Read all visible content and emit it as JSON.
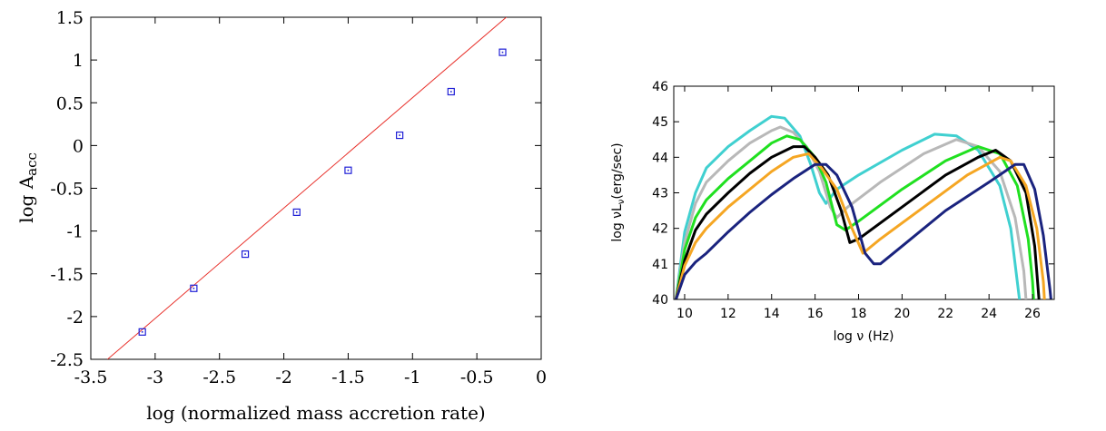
{
  "chart_data": [
    {
      "type": "scatter",
      "title": "",
      "xlabel": "log (normalized mass accretion rate)",
      "ylabel_main": "log A",
      "ylabel_sub": "acc",
      "xlim": [
        -3.5,
        0
      ],
      "ylim": [
        -2.5,
        1.5
      ],
      "xticks": [
        -3.5,
        -3,
        -2.5,
        -2,
        -1.5,
        -1,
        -0.5,
        0
      ],
      "xtick_labels": [
        "-3.5",
        "-3",
        "-2.5",
        "-2",
        "-1.5",
        "-1",
        "-0.5",
        "0"
      ],
      "yticks": [
        -2.5,
        -2,
        -1.5,
        -1,
        -0.5,
        0,
        0.5,
        1,
        1.5
      ],
      "ytick_labels": [
        "-2.5",
        "-2",
        "-1.5",
        "-1",
        "-0.5",
        "0",
        "0.5",
        "1",
        "1.5"
      ],
      "grid": false,
      "colors": {
        "points": "#1f1fd6",
        "fit": "#e8302a"
      },
      "points": [
        {
          "x": -3.1,
          "y": -2.18
        },
        {
          "x": -2.7,
          "y": -1.67
        },
        {
          "x": -2.3,
          "y": -1.27
        },
        {
          "x": -1.9,
          "y": -0.78
        },
        {
          "x": -1.5,
          "y": -0.29
        },
        {
          "x": -1.1,
          "y": 0.12
        },
        {
          "x": -0.7,
          "y": 0.63
        },
        {
          "x": -0.3,
          "y": 1.09
        }
      ],
      "fit_line": [
        {
          "x": -3.37,
          "y": -2.5
        },
        {
          "x": 0.0,
          "y": 1.85
        }
      ]
    },
    {
      "type": "line",
      "title": "",
      "xlabel": "log ν (Hz)",
      "ylabel_pre": "log νL",
      "ylabel_sub": "ν",
      "ylabel_post": "(erg/sec)",
      "xlim": [
        9.5,
        27
      ],
      "ylim": [
        40,
        46
      ],
      "xticks": [
        10,
        12,
        14,
        16,
        18,
        20,
        22,
        24,
        26
      ],
      "xtick_labels": [
        "10",
        "12",
        "14",
        "16",
        "18",
        "20",
        "22",
        "24",
        "26"
      ],
      "yticks": [
        40,
        41,
        42,
        43,
        44,
        45,
        46
      ],
      "ytick_labels": [
        "40",
        "41",
        "42",
        "43",
        "44",
        "45",
        "46"
      ],
      "grid": false,
      "series": [
        {
          "color": "#40d0d0",
          "points": [
            [
              9.6,
              40
            ],
            [
              10.0,
              41.9
            ],
            [
              10.5,
              43.0
            ],
            [
              11.0,
              43.7
            ],
            [
              12.0,
              44.3
            ],
            [
              13.0,
              44.75
            ],
            [
              14.0,
              45.15
            ],
            [
              14.6,
              45.1
            ],
            [
              15.3,
              44.6
            ],
            [
              15.8,
              43.8
            ],
            [
              16.2,
              43.0
            ],
            [
              16.5,
              42.7
            ],
            [
              17.0,
              43.1
            ],
            [
              18.0,
              43.5
            ],
            [
              20.0,
              44.2
            ],
            [
              21.5,
              44.65
            ],
            [
              22.5,
              44.6
            ],
            [
              23.5,
              44.2
            ],
            [
              24.5,
              43.2
            ],
            [
              25.0,
              42.0
            ],
            [
              25.3,
              40.5
            ],
            [
              25.4,
              40
            ]
          ]
        },
        {
          "color": "#b8b8b8",
          "points": [
            [
              9.6,
              40
            ],
            [
              10.0,
              41.6
            ],
            [
              10.5,
              42.7
            ],
            [
              11.0,
              43.3
            ],
            [
              12.0,
              43.9
            ],
            [
              13.0,
              44.4
            ],
            [
              14.0,
              44.75
            ],
            [
              14.4,
              44.85
            ],
            [
              15.0,
              44.7
            ],
            [
              15.6,
              44.3
            ],
            [
              16.2,
              43.6
            ],
            [
              16.7,
              42.6
            ],
            [
              17.0,
              42.3
            ],
            [
              17.5,
              42.6
            ],
            [
              19.0,
              43.3
            ],
            [
              21.0,
              44.1
            ],
            [
              22.5,
              44.5
            ],
            [
              23.5,
              44.3
            ],
            [
              24.5,
              43.6
            ],
            [
              25.2,
              42.3
            ],
            [
              25.6,
              40.8
            ],
            [
              25.7,
              40
            ]
          ]
        },
        {
          "color": "#20e020",
          "points": [
            [
              9.6,
              40
            ],
            [
              10.0,
              41.4
            ],
            [
              10.5,
              42.3
            ],
            [
              11.0,
              42.8
            ],
            [
              12.0,
              43.4
            ],
            [
              13.0,
              43.9
            ],
            [
              14.0,
              44.4
            ],
            [
              14.7,
              44.6
            ],
            [
              15.3,
              44.5
            ],
            [
              16.0,
              44.0
            ],
            [
              16.5,
              43.3
            ],
            [
              17.0,
              42.1
            ],
            [
              17.4,
              41.95
            ],
            [
              18.0,
              42.2
            ],
            [
              20.0,
              43.1
            ],
            [
              22.0,
              43.9
            ],
            [
              23.5,
              44.3
            ],
            [
              24.5,
              44.1
            ],
            [
              25.3,
              43.2
            ],
            [
              25.8,
              41.7
            ],
            [
              26.0,
              40.5
            ],
            [
              26.05,
              40
            ]
          ]
        },
        {
          "color": "#000000",
          "points": [
            [
              9.6,
              40
            ],
            [
              10.0,
              41.1
            ],
            [
              10.5,
              41.95
            ],
            [
              11.0,
              42.4
            ],
            [
              12.0,
              43.0
            ],
            [
              13.0,
              43.55
            ],
            [
              14.0,
              44.0
            ],
            [
              15.0,
              44.3
            ],
            [
              15.5,
              44.3
            ],
            [
              16.0,
              44.0
            ],
            [
              16.6,
              43.5
            ],
            [
              17.2,
              42.5
            ],
            [
              17.6,
              41.6
            ],
            [
              18.0,
              41.7
            ],
            [
              20.0,
              42.6
            ],
            [
              22.0,
              43.5
            ],
            [
              23.5,
              44.0
            ],
            [
              24.3,
              44.2
            ],
            [
              25.0,
              43.9
            ],
            [
              25.7,
              43.0
            ],
            [
              26.1,
              41.5
            ],
            [
              26.3,
              40
            ]
          ]
        },
        {
          "color": "#f5a623",
          "points": [
            [
              9.6,
              40
            ],
            [
              10.0,
              40.95
            ],
            [
              10.5,
              41.6
            ],
            [
              11.0,
              42.0
            ],
            [
              12.0,
              42.6
            ],
            [
              13.0,
              43.1
            ],
            [
              14.0,
              43.6
            ],
            [
              15.0,
              44.0
            ],
            [
              15.7,
              44.1
            ],
            [
              16.3,
              43.7
            ],
            [
              17.0,
              43.1
            ],
            [
              17.7,
              42.0
            ],
            [
              18.2,
              41.3
            ],
            [
              19.0,
              41.7
            ],
            [
              21.0,
              42.6
            ],
            [
              23.0,
              43.5
            ],
            [
              24.5,
              44.0
            ],
            [
              25.0,
              43.9
            ],
            [
              25.7,
              43.2
            ],
            [
              26.2,
              42.0
            ],
            [
              26.5,
              40.5
            ],
            [
              26.55,
              40
            ]
          ]
        },
        {
          "color": "#1a237e",
          "points": [
            [
              9.6,
              40
            ],
            [
              10.0,
              40.7
            ],
            [
              10.5,
              41.05
            ],
            [
              11.0,
              41.3
            ],
            [
              12.0,
              41.9
            ],
            [
              13.0,
              42.45
            ],
            [
              14.0,
              42.95
            ],
            [
              15.0,
              43.4
            ],
            [
              16.0,
              43.8
            ],
            [
              16.5,
              43.8
            ],
            [
              17.0,
              43.5
            ],
            [
              17.7,
              42.6
            ],
            [
              18.3,
              41.3
            ],
            [
              18.7,
              41.0
            ],
            [
              19.0,
              41.0
            ],
            [
              20.0,
              41.5
            ],
            [
              22.0,
              42.5
            ],
            [
              24.0,
              43.3
            ],
            [
              25.2,
              43.8
            ],
            [
              25.6,
              43.8
            ],
            [
              26.1,
              43.1
            ],
            [
              26.5,
              41.8
            ],
            [
              26.8,
              40.3
            ],
            [
              26.85,
              40
            ]
          ]
        }
      ]
    }
  ]
}
